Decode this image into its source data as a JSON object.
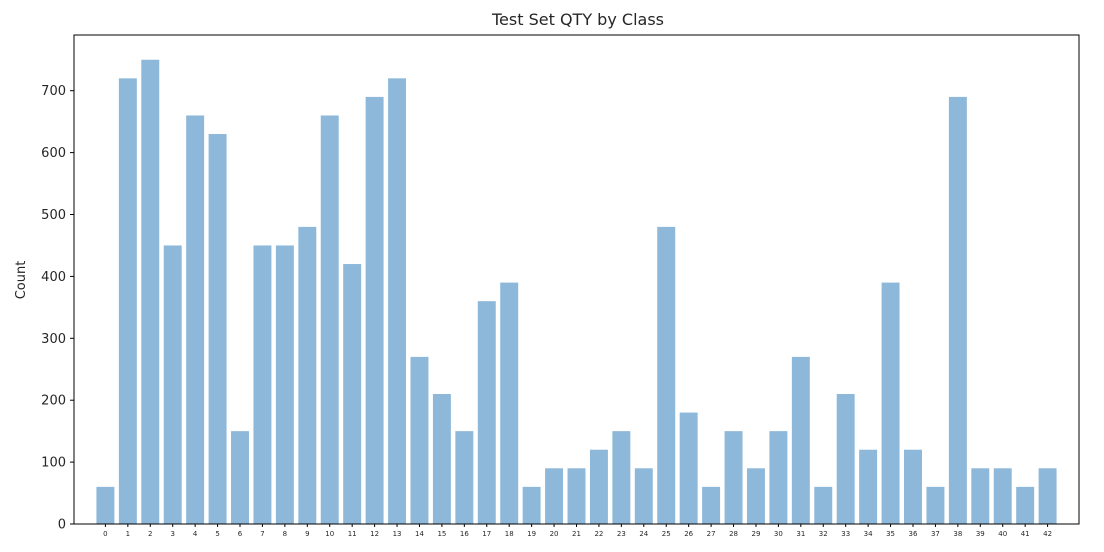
{
  "chart_data": {
    "type": "bar",
    "title": "Test Set QTY by Class",
    "xlabel": "",
    "ylabel": "Count",
    "ylim": [
      0,
      790
    ],
    "yticks": [
      0,
      100,
      200,
      300,
      400,
      500,
      600,
      700
    ],
    "grid": false,
    "categories": [
      "0",
      "1",
      "2",
      "3",
      "4",
      "5",
      "6",
      "7",
      "8",
      "9",
      "10",
      "11",
      "12",
      "13",
      "14",
      "15",
      "16",
      "17",
      "18",
      "19",
      "20",
      "21",
      "22",
      "23",
      "24",
      "25",
      "26",
      "27",
      "28",
      "29",
      "30",
      "31",
      "32",
      "33",
      "34",
      "35",
      "36",
      "37",
      "38",
      "39",
      "40",
      "41",
      "42"
    ],
    "values": [
      60,
      720,
      750,
      450,
      660,
      630,
      150,
      450,
      450,
      480,
      660,
      420,
      690,
      720,
      270,
      210,
      150,
      360,
      390,
      60,
      90,
      90,
      120,
      150,
      90,
      480,
      180,
      60,
      150,
      90,
      150,
      270,
      60,
      210,
      120,
      390,
      120,
      60,
      690,
      90,
      90,
      60,
      90
    ],
    "colors": {
      "bar": "#8db8d9",
      "axis": "#000000",
      "text": "#262626"
    }
  }
}
